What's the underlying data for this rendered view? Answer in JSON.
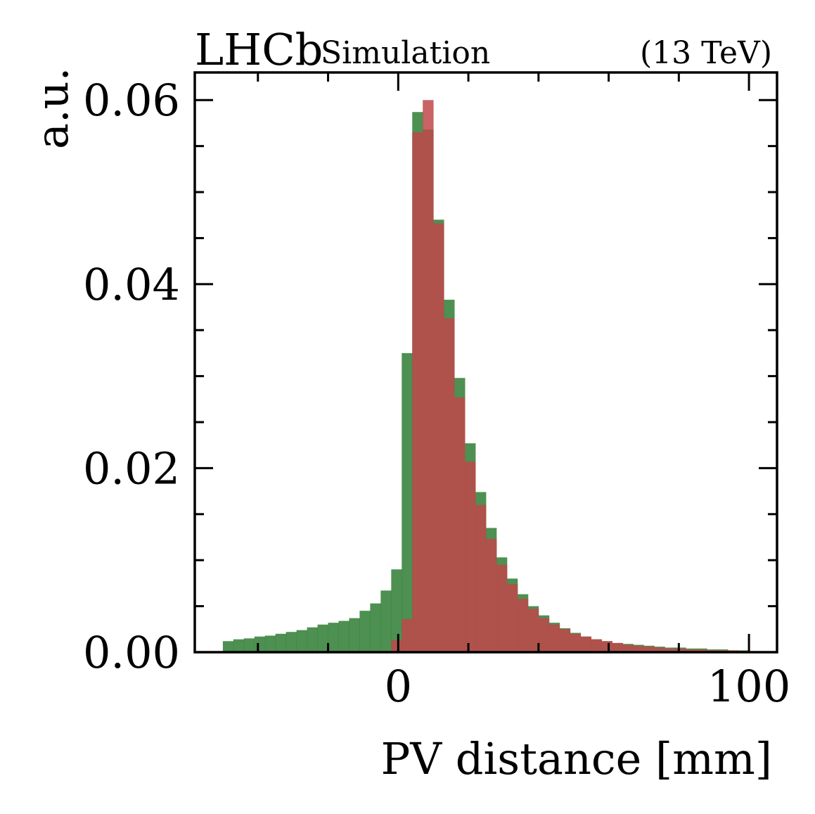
{
  "header": {
    "experiment": "LHCb",
    "subtitle": "Simulation",
    "energy": "(13 TeV)"
  },
  "chart_data": {
    "type": "bar",
    "xlabel": "PV distance [mm]",
    "ylabel": "a.u.",
    "xlim": [
      -58,
      108
    ],
    "ylim": [
      0,
      0.063
    ],
    "x_ticks": [
      0,
      100
    ],
    "y_ticks": [
      0,
      0.02,
      0.04,
      0.06
    ],
    "y_tick_labels": [
      "0.00",
      "0.02",
      "0.04",
      "0.06"
    ],
    "grid": false,
    "legend": "none",
    "bin_width": 3,
    "series": [
      {
        "color": "#2e7d32",
        "opacity": 0.85,
        "x": [
          -50,
          -47,
          -44,
          -41,
          -38,
          -35,
          -32,
          -29,
          -26,
          -23,
          -20,
          -17,
          -14,
          -11,
          -8,
          -5,
          -2,
          1,
          4,
          7,
          10,
          13,
          16,
          19,
          22,
          25,
          28,
          31,
          34,
          37,
          40,
          43,
          46,
          49,
          52,
          55,
          58,
          61,
          64,
          67,
          70,
          73,
          76,
          79,
          82,
          85,
          88,
          91,
          94,
          97
        ],
        "values": [
          0.0012,
          0.0014,
          0.0015,
          0.0017,
          0.0018,
          0.002,
          0.0022,
          0.0024,
          0.0027,
          0.003,
          0.0032,
          0.0034,
          0.0037,
          0.0045,
          0.0053,
          0.0067,
          0.009,
          0.0325,
          0.0587,
          0.0568,
          0.047,
          0.0383,
          0.0298,
          0.0227,
          0.0174,
          0.0135,
          0.0103,
          0.008,
          0.0063,
          0.005,
          0.004,
          0.0032,
          0.0026,
          0.0021,
          0.0017,
          0.0014,
          0.0012,
          0.001,
          0.0009,
          0.0008,
          0.0007,
          0.0006,
          0.0005,
          0.0005,
          0.0004,
          0.0004,
          0.0003,
          0.0003,
          0.0002,
          0.0002
        ]
      },
      {
        "color": "#c0484a",
        "opacity": 0.85,
        "x": [
          -2,
          1,
          4,
          7,
          10,
          13,
          16,
          19,
          22,
          25,
          28,
          31,
          34,
          37,
          40,
          43,
          46,
          49,
          52,
          55,
          58,
          61,
          64,
          67,
          70,
          73,
          76,
          79,
          82,
          85,
          88,
          91,
          94,
          97
        ],
        "values": [
          0.0013,
          0.0036,
          0.0565,
          0.06,
          0.0466,
          0.0363,
          0.0277,
          0.0207,
          0.016,
          0.0123,
          0.0095,
          0.0074,
          0.0058,
          0.0047,
          0.0037,
          0.003,
          0.0025,
          0.002,
          0.0017,
          0.0014,
          0.0012,
          0.001,
          0.0008,
          0.0007,
          0.0006,
          0.0005,
          0.0004,
          0.0004,
          0.0003,
          0.0003,
          0.0002,
          0.0002,
          0.0002,
          0.0001
        ]
      }
    ]
  }
}
